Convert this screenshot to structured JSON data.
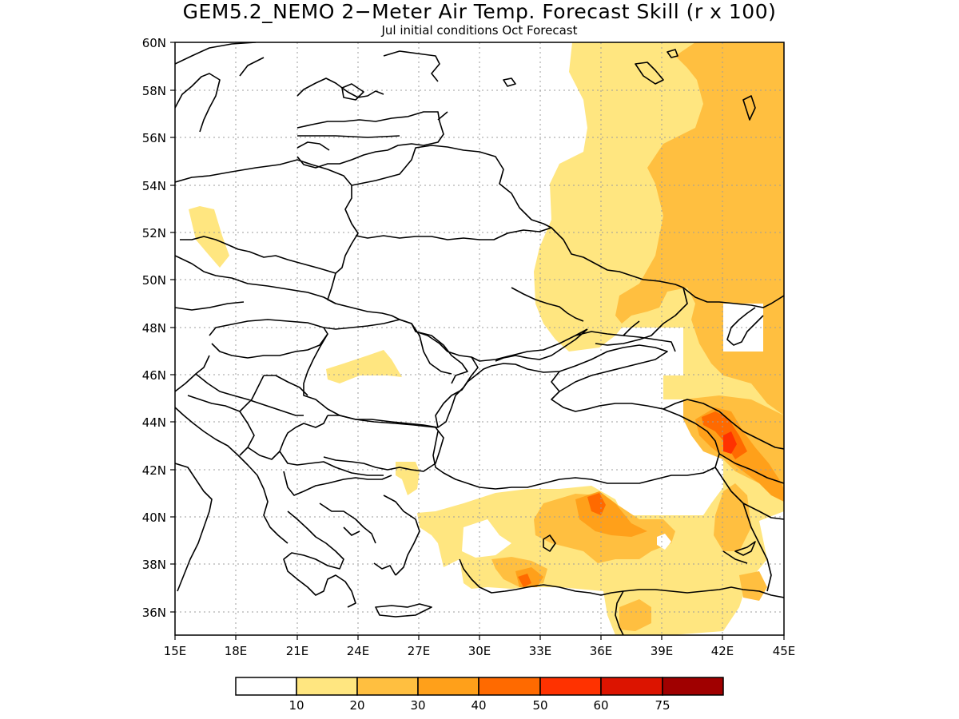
{
  "title": "GEM5.2_NEMO 2−Meter Air Temp. Forecast Skill (r x 100)",
  "subtitle": "Jul initial conditions  Oct Forecast",
  "map": {
    "lon_range": [
      15,
      45
    ],
    "lat_range": [
      35,
      60
    ],
    "gridlines": true,
    "lat_labels": [
      "60N",
      "58N",
      "56N",
      "54N",
      "52N",
      "50N",
      "48N",
      "46N",
      "44N",
      "42N",
      "40N",
      "38N",
      "36N"
    ],
    "lon_labels": [
      "15E",
      "18E",
      "21E",
      "24E",
      "27E",
      "30E",
      "33E",
      "36E",
      "39E",
      "42E",
      "45E"
    ]
  },
  "colorbar": {
    "levels": [
      "10",
      "20",
      "30",
      "40",
      "50",
      "60",
      "75"
    ],
    "colors": [
      "#ffffff",
      "#ffe680",
      "#ffbf40",
      "#ffa01a",
      "#ff6a00",
      "#ff3200",
      "#dc1400",
      "#a00000"
    ]
  }
}
